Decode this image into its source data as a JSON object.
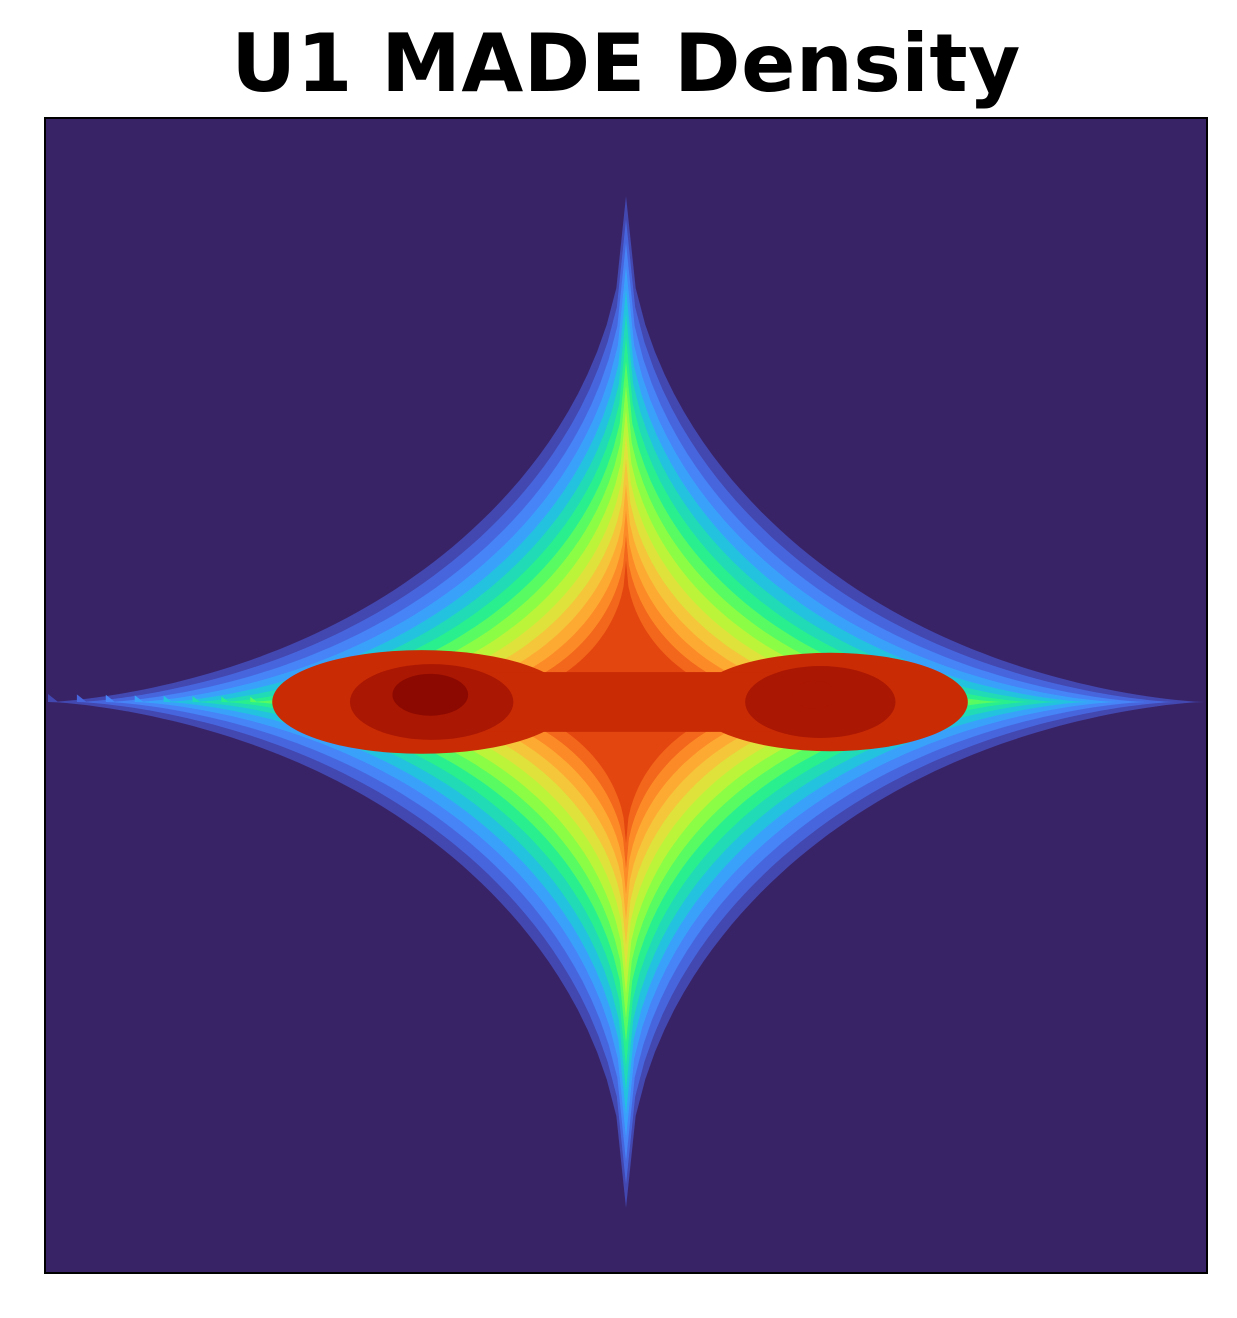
{
  "chart_data": {
    "type": "heatmap",
    "title": "U1 MADE Density",
    "xlabel": "",
    "ylabel": "",
    "xlim": [
      -4,
      4
    ],
    "ylim": [
      -4,
      4
    ],
    "grid": false,
    "axes_ticks": false,
    "colormap": "turbo",
    "levels": 20,
    "colors": {
      "background": "#382366",
      "level_1": "#4347b0",
      "level_2": "#4766dd",
      "level_3": "#4684f7",
      "level_4": "#3aa1fb",
      "level_5": "#23c2df",
      "level_6": "#20dbb6",
      "level_7": "#2aef8f",
      "level_8": "#58fb62",
      "level_9": "#8cfd45",
      "level_10": "#bcf43a",
      "level_11": "#dee23b",
      "level_12": "#f5c53a",
      "level_13": "#fdaa33",
      "level_14": "#fc8b27",
      "level_15": "#f2671b",
      "level_16": "#e3460f",
      "level_17": "#c92b05",
      "level_18": "#aa1702",
      "level_19": "#8c0901"
    },
    "density_features": {
      "shape": "four-pointed star elongated along x, pinched at the center",
      "modes": [
        {
          "x": -1.35,
          "y": 0.05,
          "level": 19
        },
        {
          "x": 1.3,
          "y": 0.05,
          "level": 18
        }
      ]
    }
  }
}
